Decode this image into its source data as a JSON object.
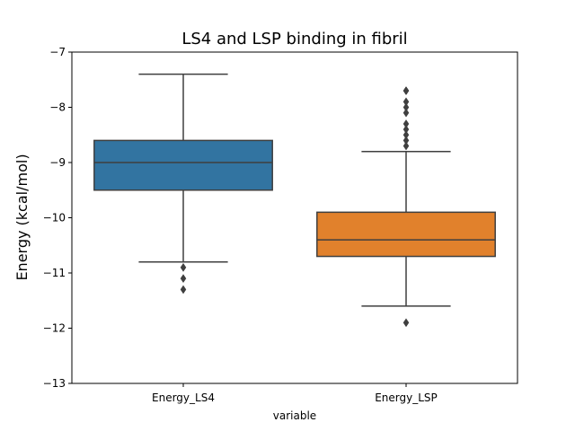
{
  "chart_data": {
    "type": "box",
    "title": "LS4 and LSP binding in fibril",
    "xlabel": "variable",
    "ylabel": "Energy (kcal/mol)",
    "ylim": [
      -13,
      -7
    ],
    "yticks": [
      -13,
      -12,
      -11,
      -10,
      -9,
      -8,
      -7
    ],
    "ytick_labels": [
      "−13",
      "−12",
      "−11",
      "−10",
      "−9",
      "−8",
      "−7"
    ],
    "grid": false,
    "categories": [
      "Energy_LS4",
      "Energy_LSP"
    ],
    "boxes": [
      {
        "category": "Energy_LS4",
        "color": "#3274a1",
        "whisker_low": -10.8,
        "q1": -9.5,
        "median": -9.0,
        "q3": -8.6,
        "whisker_high": -7.4,
        "outliers": [
          -10.9,
          -11.1,
          -11.3
        ]
      },
      {
        "category": "Energy_LSP",
        "color": "#e1812c",
        "whisker_low": -11.6,
        "q1": -10.7,
        "median": -10.4,
        "q3": -9.9,
        "whisker_high": -8.8,
        "outliers": [
          -8.6,
          -8.7,
          -8.5,
          -8.4,
          -8.3,
          -8.1,
          -8.0,
          -7.9,
          -7.7,
          -7.7,
          -11.9
        ]
      }
    ]
  }
}
